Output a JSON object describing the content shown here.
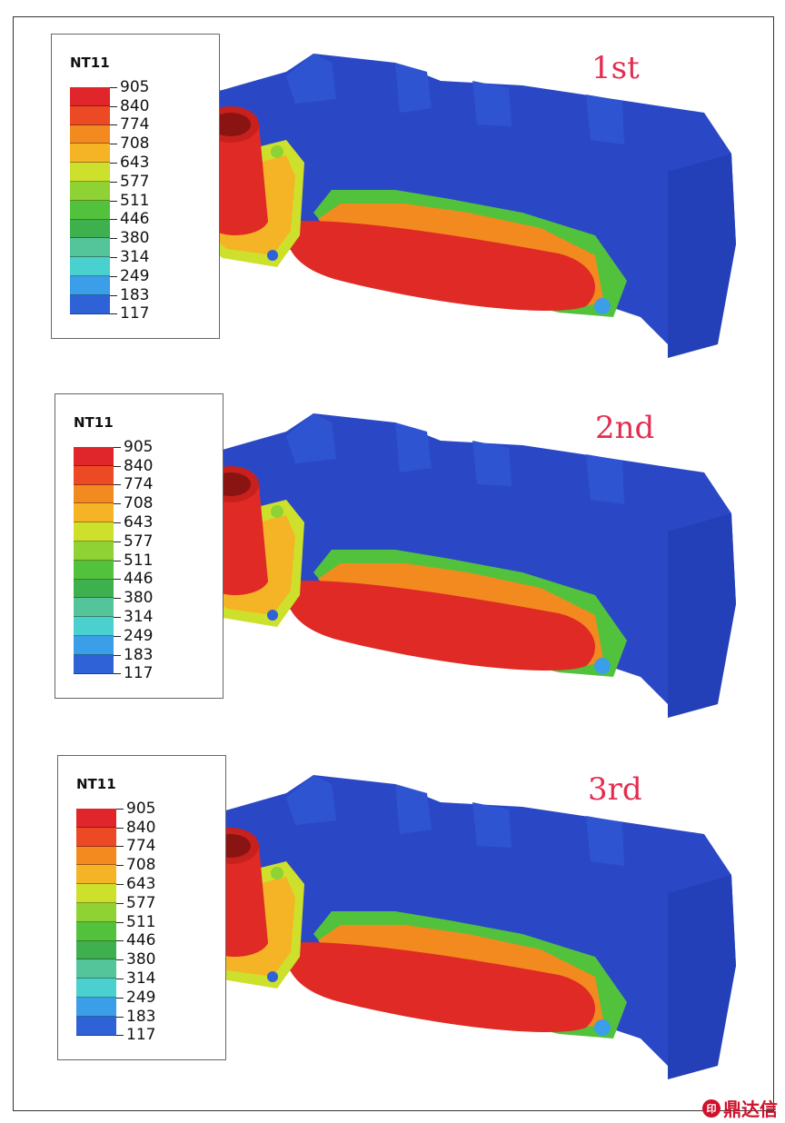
{
  "legend": {
    "title": "NT11",
    "values": [
      "905",
      "840",
      "774",
      "708",
      "643",
      "577",
      "511",
      "446",
      "380",
      "314",
      "249",
      "183",
      "117"
    ],
    "colors": [
      "#e0262a",
      "#ec4a24",
      "#f28a1f",
      "#f5b425",
      "#cde02c",
      "#8fd234",
      "#52c23c",
      "#3fb04e",
      "#54c49a",
      "#4ad0cf",
      "#3a9ee8",
      "#2f62d6",
      "#2244b4"
    ]
  },
  "panels": [
    {
      "label": "1st"
    },
    {
      "label": "2nd"
    },
    {
      "label": "3rd"
    }
  ],
  "watermark": {
    "text": "鼎达信"
  },
  "colors": {
    "body_blue": "#2a48c6",
    "hot_red": "#e02a25",
    "label_red": "#e32d50"
  }
}
